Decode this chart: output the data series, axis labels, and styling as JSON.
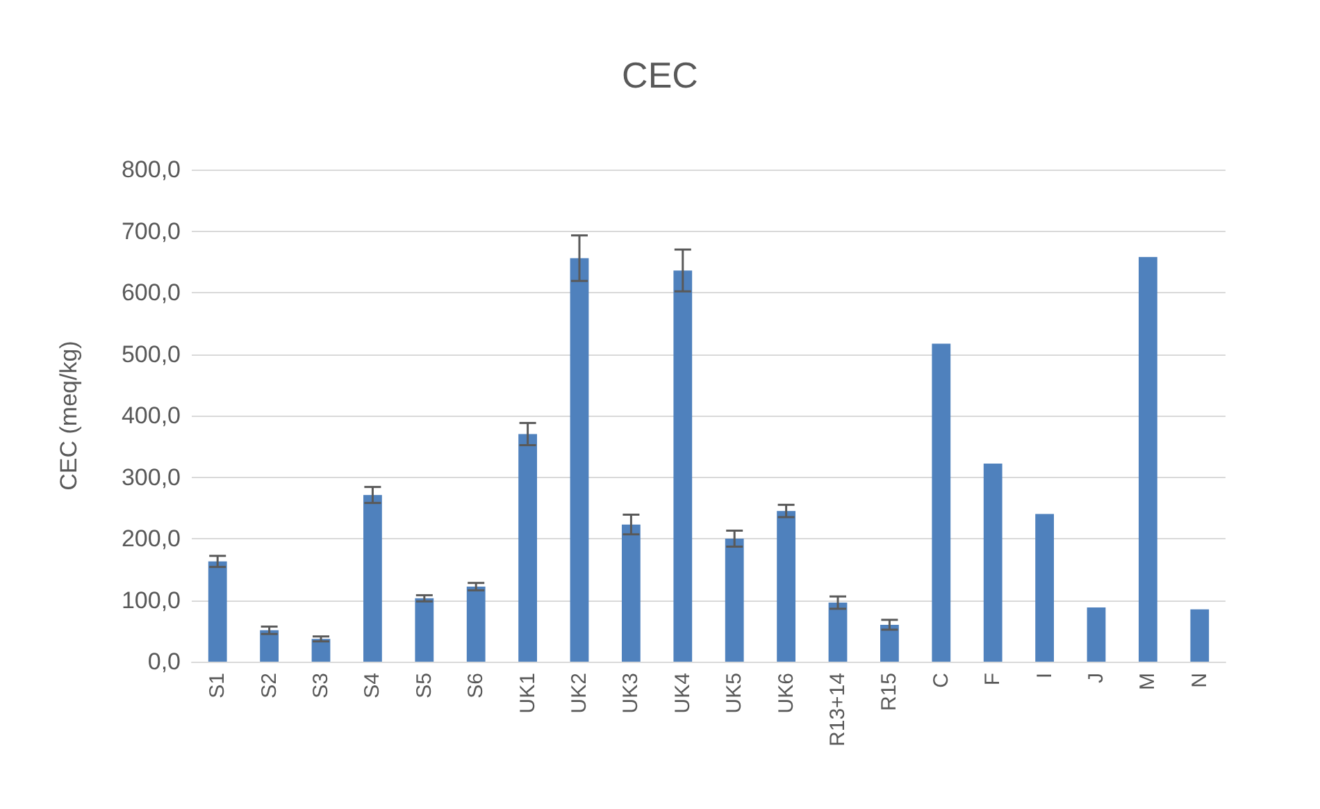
{
  "chart_data": {
    "type": "bar",
    "title": "CEC",
    "ylabel": "CEC (meq/kg)",
    "categories": [
      "S1",
      "S2",
      "S3",
      "S4",
      "S5",
      "S6",
      "UK1",
      "UK2",
      "UK3",
      "UK4",
      "UK5",
      "UK6",
      "R13+14",
      "R15",
      "C",
      "F",
      "I",
      "J",
      "M",
      "N"
    ],
    "values": [
      163,
      51,
      37,
      271,
      103,
      122,
      370,
      656,
      223,
      636,
      200,
      245,
      96,
      60,
      517,
      322,
      240,
      88,
      658,
      85
    ],
    "errors": [
      9,
      6,
      4,
      13,
      5,
      6,
      18,
      37,
      16,
      34,
      13,
      10,
      10,
      8,
      null,
      null,
      null,
      null,
      null,
      null
    ],
    "color": "#4f81bd",
    "ylim": [
      0,
      800
    ],
    "yticks": [
      {
        "value": 0,
        "label": "0,0"
      },
      {
        "value": 100,
        "label": "100,0"
      },
      {
        "value": 200,
        "label": "200,0"
      },
      {
        "value": 300,
        "label": "300,0"
      },
      {
        "value": 400,
        "label": "400,0"
      },
      {
        "value": 500,
        "label": "500,0"
      },
      {
        "value": 600,
        "label": "600,0"
      },
      {
        "value": 700,
        "label": "700,0"
      },
      {
        "value": 800,
        "label": "800,0"
      }
    ],
    "grid": "y"
  }
}
